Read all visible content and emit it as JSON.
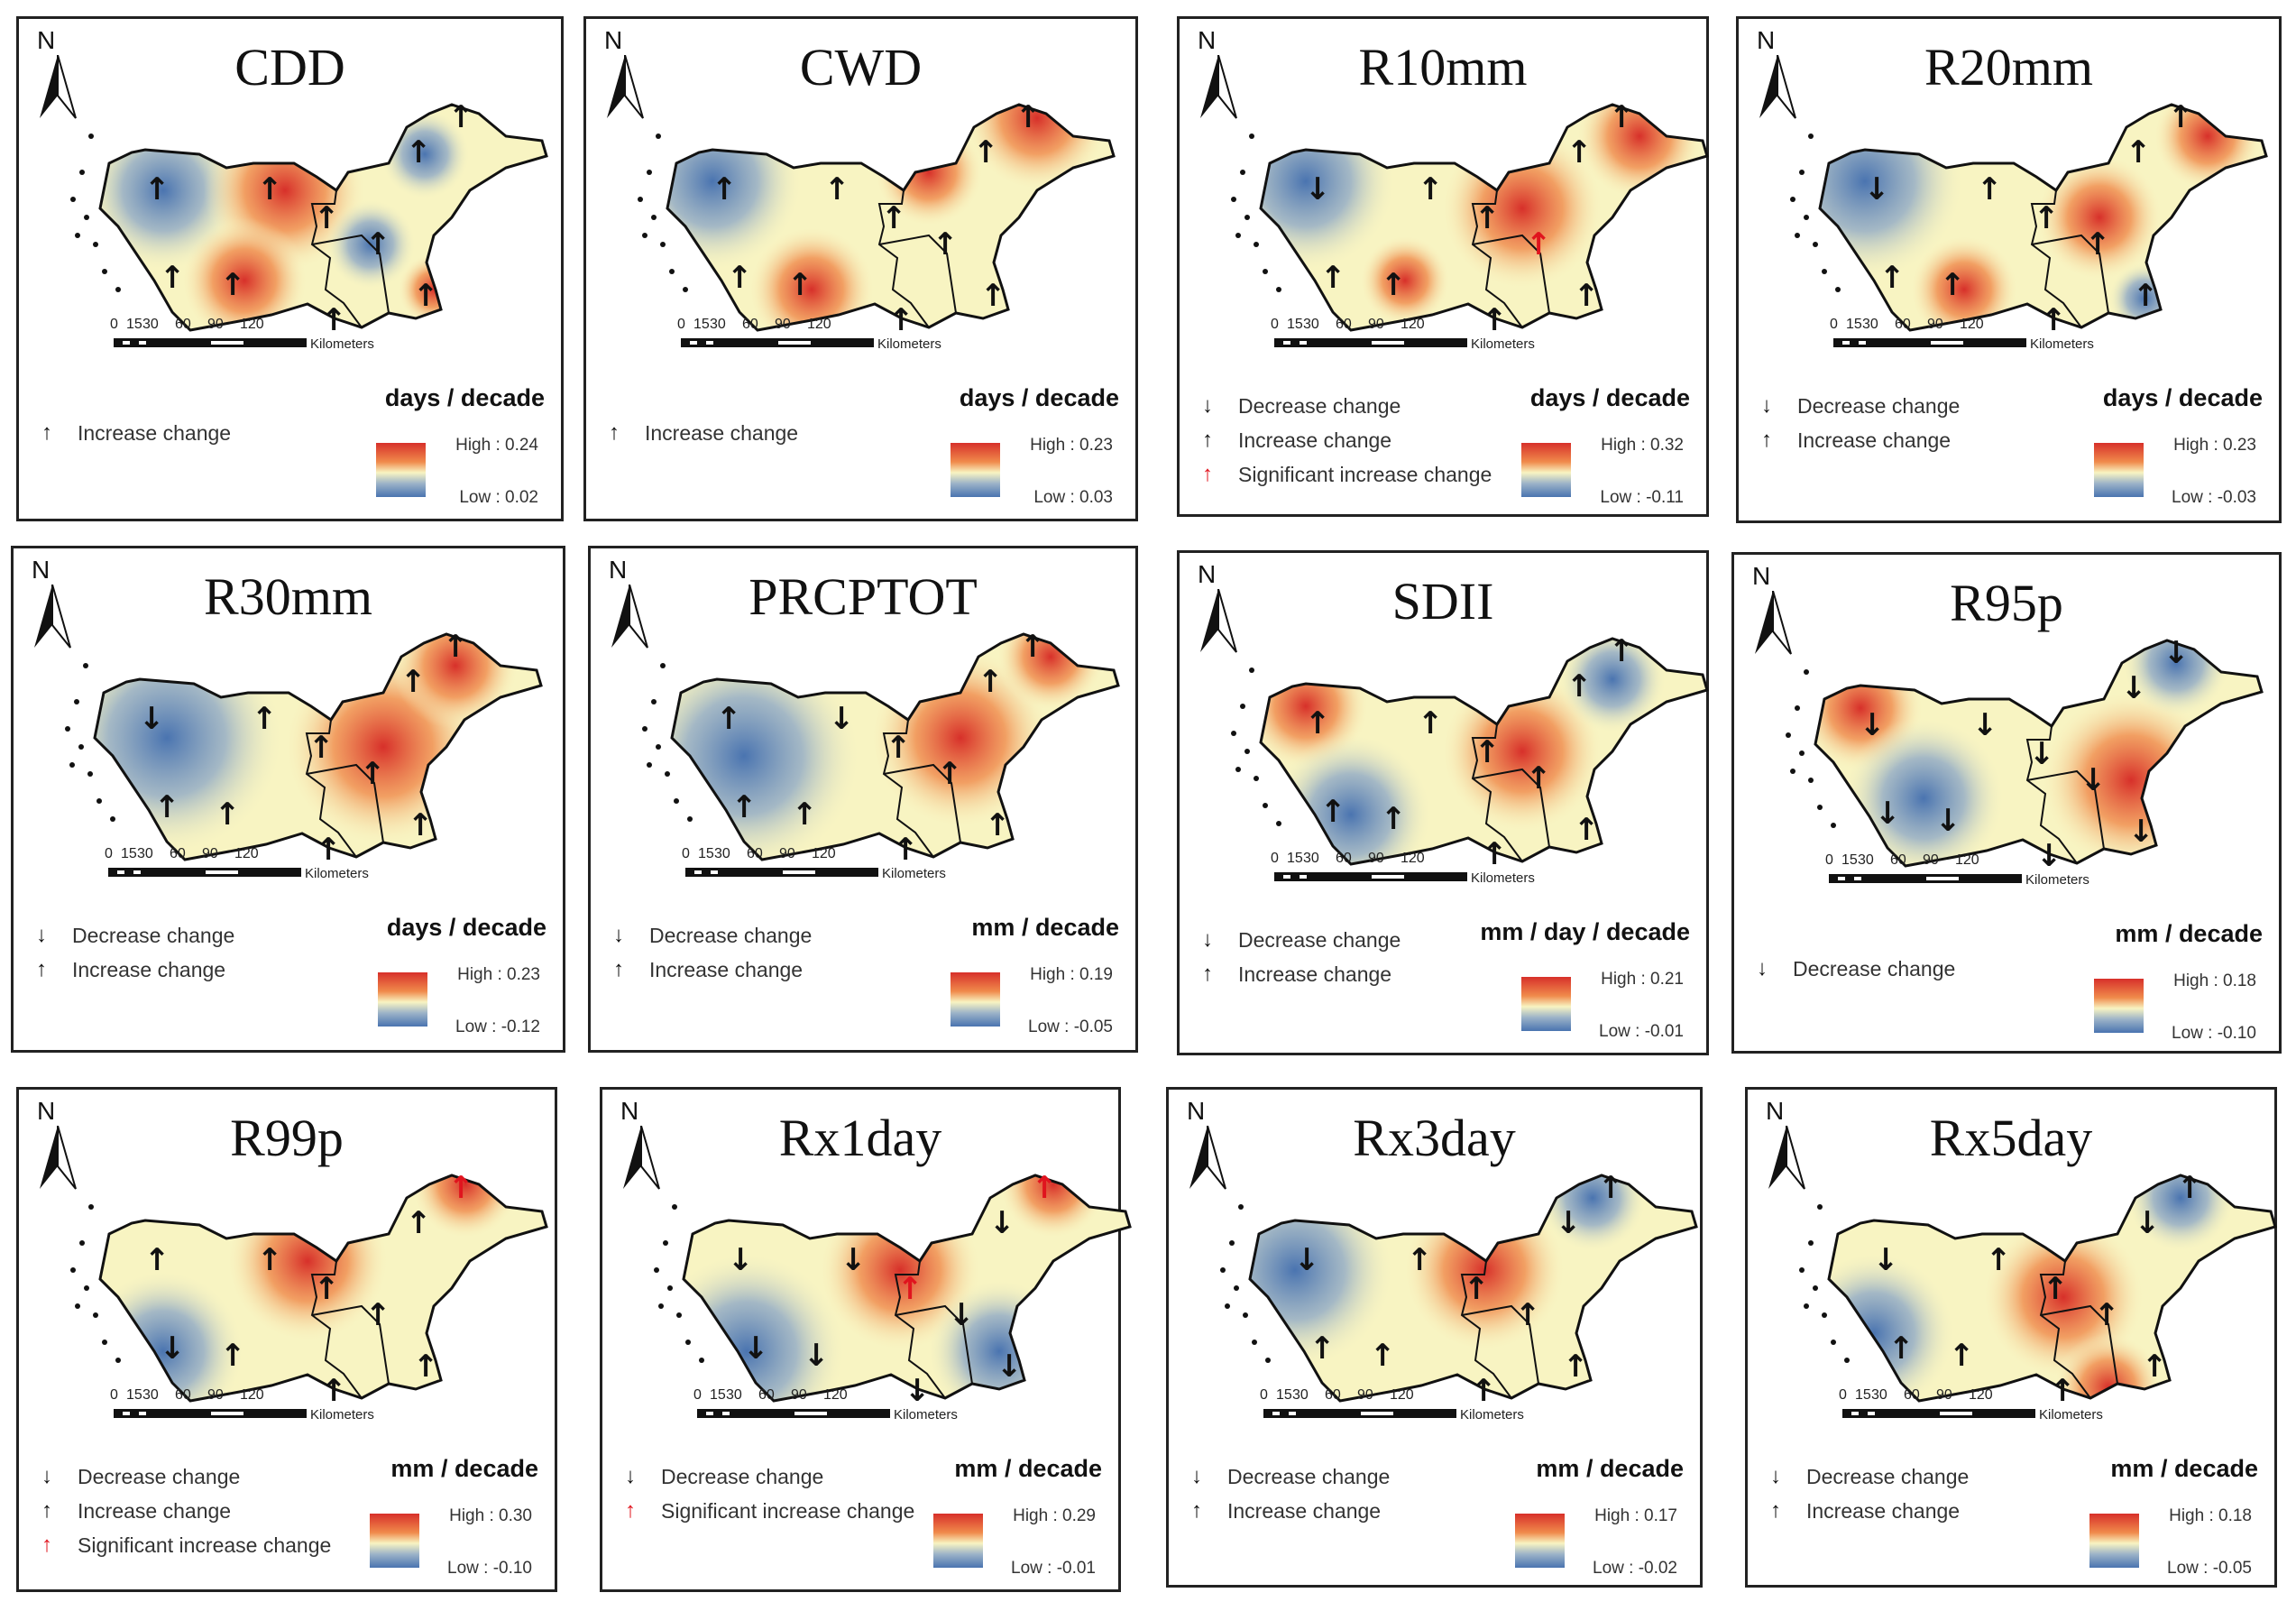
{
  "figure": {
    "north_label": "N",
    "scale_ticks": [
      "0",
      "15",
      "30",
      "60",
      "90",
      "120"
    ],
    "scale_unit": "Kilometers",
    "legend_labels": {
      "down": "Decrease change",
      "up": "Increase change",
      "sig-up": "Significant increase change"
    },
    "colors": {
      "high": "#d7302a",
      "mid": "#f8f4c2",
      "low": "#4a74b0",
      "significant": "#e0141e"
    },
    "panels": [
      {
        "title": "CDD",
        "legend": [
          "up"
        ],
        "unit": "days / decade",
        "high": "High : 0.24",
        "low": "Low : 0.02",
        "arrows": [
          "up",
          "up",
          "up",
          "up",
          "up",
          "up",
          "up",
          "up",
          "up",
          "up"
        ]
      },
      {
        "title": "CWD",
        "legend": [
          "up"
        ],
        "unit": "days / decade",
        "high": "High : 0.23",
        "low": "Low : 0.03",
        "arrows": [
          "up",
          "up",
          "up",
          "up",
          "up",
          "up",
          "up",
          "up",
          "up",
          "up"
        ]
      },
      {
        "title": "R10mm",
        "legend": [
          "down",
          "up",
          "sig-up"
        ],
        "unit": "days / decade",
        "high": "High : 0.32",
        "low": "Low : -0.11",
        "arrows": [
          "down",
          "up",
          "up",
          "up",
          "up",
          "sig-up",
          "up",
          "up",
          "up",
          "up"
        ]
      },
      {
        "title": "R20mm",
        "legend": [
          "down",
          "up"
        ],
        "unit": "days / decade",
        "high": "High : 0.23",
        "low": "Low : -0.03",
        "arrows": [
          "down",
          "up",
          "up",
          "up",
          "up",
          "up",
          "up",
          "up",
          "up",
          "up"
        ]
      },
      {
        "title": "R30mm",
        "legend": [
          "down",
          "up"
        ],
        "unit": "days / decade",
        "high": "High : 0.23",
        "low": "Low : -0.12",
        "arrows": [
          "down",
          "up",
          "up",
          "up",
          "up",
          "up",
          "up",
          "up",
          "up",
          "up"
        ]
      },
      {
        "title": "PRCPTOT",
        "legend": [
          "down",
          "up"
        ],
        "unit": "mm / decade",
        "high": "High : 0.19",
        "low": "Low : -0.05",
        "arrows": [
          "up",
          "down",
          "up",
          "up",
          "up",
          "up",
          "up",
          "up",
          "up",
          "up"
        ]
      },
      {
        "title": "SDII",
        "legend": [
          "down",
          "up"
        ],
        "unit": "mm / day / decade",
        "high": "High : 0.21",
        "low": "Low : -0.01",
        "arrows": [
          "up",
          "up",
          "up",
          "up",
          "up",
          "up",
          "up",
          "up",
          "up",
          "up"
        ]
      },
      {
        "title": "R95p",
        "legend": [
          "down"
        ],
        "unit": "mm / decade",
        "high": "High : 0.18",
        "low": "Low : -0.10",
        "arrows": [
          "down",
          "down",
          "down",
          "down",
          "down",
          "down",
          "down",
          "down",
          "down",
          "down"
        ]
      },
      {
        "title": "R99p",
        "legend": [
          "down",
          "up",
          "sig-up"
        ],
        "unit": "mm / decade",
        "high": "High : 0.30",
        "low": "Low : -0.10",
        "arrows": [
          "up",
          "up",
          "sig-up",
          "up",
          "up",
          "up",
          "down",
          "up",
          "up",
          "up"
        ]
      },
      {
        "title": "Rx1day",
        "legend": [
          "down",
          "sig-up"
        ],
        "unit": "mm / decade",
        "high": "High : 0.29",
        "low": "Low : -0.01",
        "arrows": [
          "down",
          "down",
          "sig-up",
          "down",
          "sig-up",
          "down",
          "down",
          "down",
          "down",
          "down"
        ]
      },
      {
        "title": "Rx3day",
        "legend": [
          "down",
          "up"
        ],
        "unit": "mm / decade",
        "high": "High : 0.17",
        "low": "Low : -0.02",
        "arrows": [
          "down",
          "up",
          "up",
          "down",
          "up",
          "up",
          "up",
          "up",
          "up",
          "up"
        ]
      },
      {
        "title": "Rx5day",
        "legend": [
          "down",
          "up"
        ],
        "unit": "mm / decade",
        "high": "High : 0.18",
        "low": "Low : -0.05",
        "arrows": [
          "down",
          "up",
          "up",
          "down",
          "up",
          "up",
          "up",
          "up",
          "up",
          "up"
        ]
      }
    ]
  }
}
